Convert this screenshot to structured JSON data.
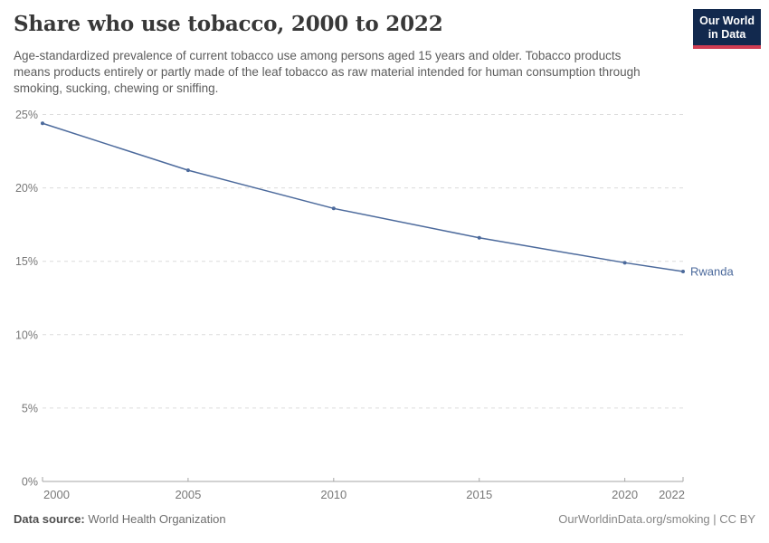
{
  "chart_data": {
    "type": "line",
    "title": "Share who use tobacco, 2000 to 2022",
    "subtitle": "Age-standardized prevalence of current tobacco use among persons aged 15 years and older. Tobacco products means products entirely or partly made of the leaf tobacco as raw material intended for human consumption through smoking, sucking, chewing or sniffing.",
    "series": [
      {
        "name": "Rwanda",
        "color": "#4c6a9c",
        "x": [
          2000,
          2005,
          2010,
          2015,
          2020,
          2022
        ],
        "values": [
          24.4,
          21.2,
          18.6,
          16.6,
          14.9,
          14.3
        ]
      }
    ],
    "xlim": [
      2000,
      2022
    ],
    "ylim": [
      0,
      25
    ],
    "x_tick_values": [
      2000,
      2005,
      2010,
      2015,
      2020,
      2022
    ],
    "x_tick_labels": [
      "2000",
      "2005",
      "2010",
      "2015",
      "2020",
      "2022"
    ],
    "y_tick_values": [
      0,
      5,
      10,
      15,
      20,
      25
    ],
    "y_tick_labels": [
      "0%",
      "5%",
      "10%",
      "15%",
      "20%",
      "25%"
    ],
    "grid": "horizontal-dashed",
    "legend": "line-end-label",
    "axis_colors": {
      "grid": "#dcdcdc",
      "baseline": "#a6a6a6",
      "tick_text": "#787878"
    }
  },
  "logo": {
    "line1": "Our World",
    "line2": "in Data",
    "bg": "#12294e",
    "stripe": "#d13d53"
  },
  "footer": {
    "source_label": "Data source:",
    "source_value": "World Health Organization",
    "credit": "OurWorldinData.org/smoking | CC BY"
  }
}
